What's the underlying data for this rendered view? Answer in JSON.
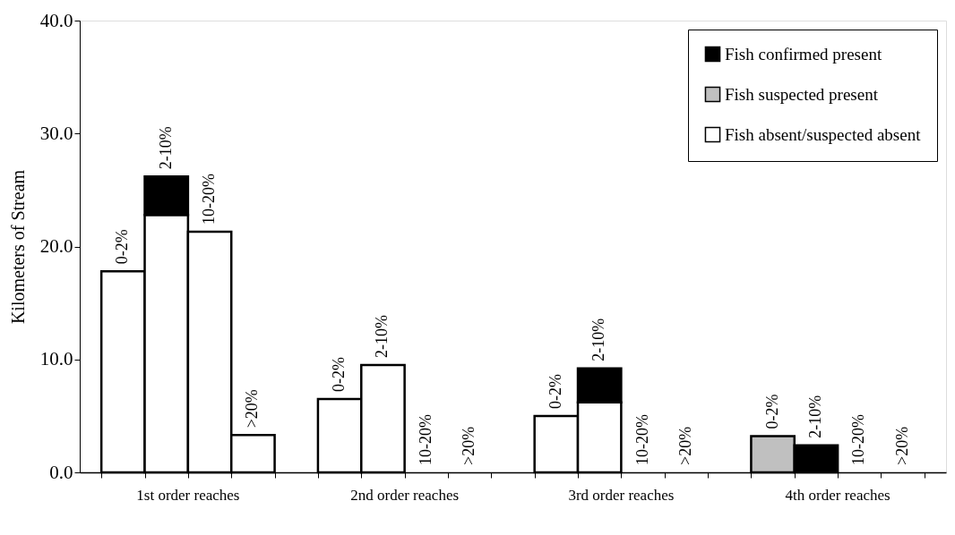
{
  "chart_data": {
    "type": "bar",
    "stacked": true,
    "ylabel": "Kilometers of Stream",
    "categories": [
      "0-2%",
      "2-10%",
      "10-20%",
      ">20%",
      "0-2%",
      "2-10%",
      "10-20%",
      ">20%",
      "0-2%",
      "2-10%",
      "10-20%",
      ">20%",
      "0-2%",
      "2-10%",
      "10-20%",
      ">20%"
    ],
    "series": [
      {
        "name": "Fish absent/suspected absent",
        "color": "#ffffff",
        "values": [
          17.8,
          22.8,
          21.3,
          3.3,
          6.5,
          9.5,
          0,
          0,
          5.0,
          6.2,
          0,
          0,
          null,
          null,
          0,
          0
        ]
      },
      {
        "name": "Fish suspected present",
        "color": "#c0c0c0",
        "values": [
          null,
          null,
          null,
          null,
          null,
          null,
          null,
          null,
          null,
          null,
          null,
          null,
          3.2,
          null,
          null,
          null
        ]
      },
      {
        "name": "Fish confirmed present",
        "color": "#000000",
        "values": [
          null,
          3.4,
          null,
          null,
          null,
          null,
          null,
          null,
          null,
          3.0,
          null,
          null,
          null,
          2.4,
          null,
          null
        ]
      }
    ],
    "annotations": [
      "1st order reaches",
      "2nd order reaches",
      "3rd order reaches",
      "4th order reaches"
    ],
    "ylim": [
      0,
      40
    ],
    "yticks": [
      {
        "value": 0,
        "label": "0.0"
      },
      {
        "value": 10,
        "label": "10.0"
      },
      {
        "value": 20,
        "label": "20.0"
      },
      {
        "value": 30,
        "label": "30.0"
      },
      {
        "value": 40,
        "label": "40.0"
      }
    ],
    "legend": "top right",
    "grid": false
  }
}
